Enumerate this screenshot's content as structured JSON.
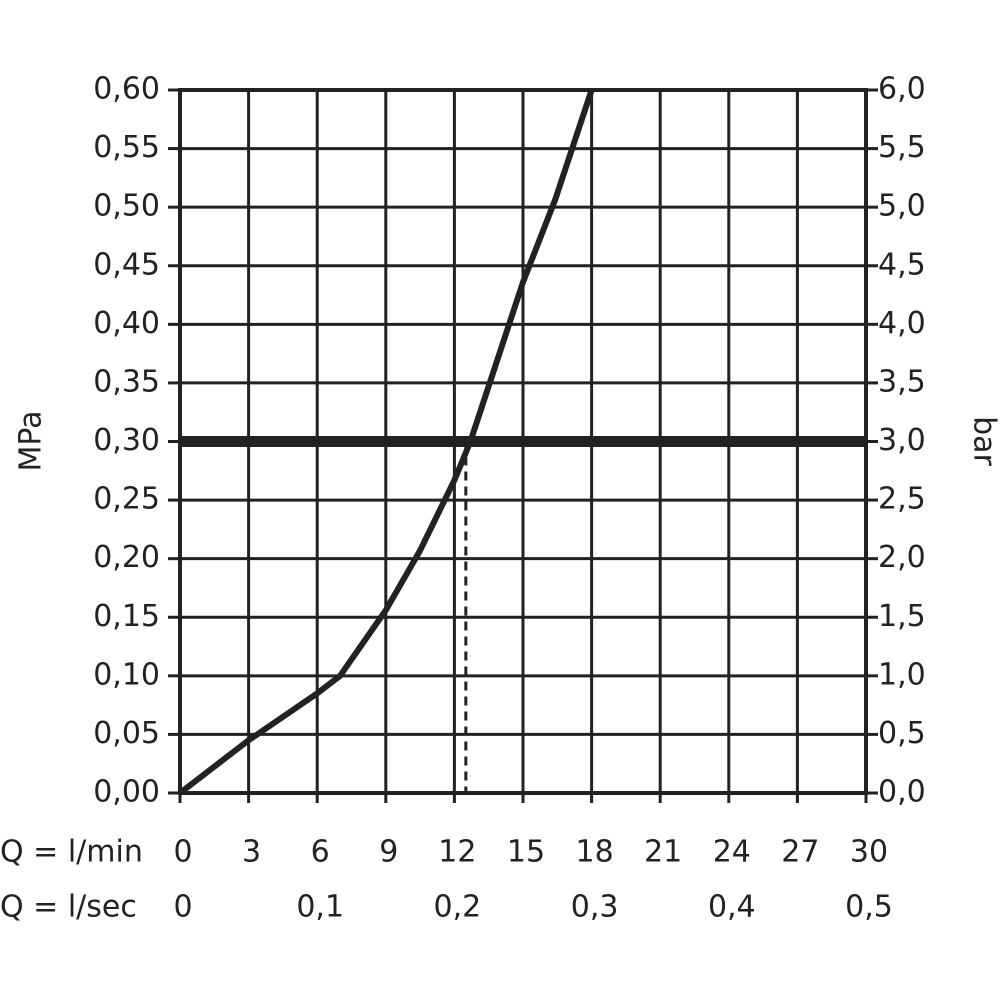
{
  "chart_data": {
    "type": "line",
    "x_label": "Q = l/min",
    "x2_label": "Q = l/sec",
    "y_label": "MPa",
    "y2_label": "bar",
    "xlim": [
      0,
      30
    ],
    "xticks": [
      0,
      3,
      6,
      9,
      12,
      15,
      18,
      21,
      24,
      27,
      30
    ],
    "x2lim": [
      0,
      0.5
    ],
    "x2ticks": [
      0,
      {
        "value": 0.1,
        "label": "0,1"
      },
      {
        "value": 0.2,
        "label": "0,2"
      },
      {
        "value": 0.3,
        "label": "0,3"
      },
      {
        "value": 0.4,
        "label": "0,4"
      },
      {
        "value": 0.5,
        "label": "0,5"
      }
    ],
    "ylim": [
      0,
      0.6
    ],
    "yticks": [
      {
        "value": 0,
        "label": "0,00"
      },
      {
        "value": 0.05,
        "label": "0,05"
      },
      {
        "value": 0.1,
        "label": "0,10"
      },
      {
        "value": 0.15,
        "label": "0,15"
      },
      {
        "value": 0.2,
        "label": "0,20"
      },
      {
        "value": 0.25,
        "label": "0,25"
      },
      {
        "value": 0.3,
        "label": "0,30"
      },
      {
        "value": 0.35,
        "label": "0,35"
      },
      {
        "value": 0.4,
        "label": "0,40"
      },
      {
        "value": 0.45,
        "label": "0,45"
      },
      {
        "value": 0.5,
        "label": "0,50"
      },
      {
        "value": 0.55,
        "label": "0,55"
      },
      {
        "value": 0.6,
        "label": "0,60"
      }
    ],
    "y2lim": [
      0,
      6
    ],
    "y2ticks": [
      {
        "value": 0,
        "label": "0,0"
      },
      {
        "value": 0.5,
        "label": "0,5"
      },
      {
        "value": 1,
        "label": "1,0"
      },
      {
        "value": 1.5,
        "label": "1,5"
      },
      {
        "value": 2,
        "label": "2,0"
      },
      {
        "value": 2.5,
        "label": "2,5"
      },
      {
        "value": 3,
        "label": "3,0"
      },
      {
        "value": 3.5,
        "label": "3,5"
      },
      {
        "value": 4,
        "label": "4,0"
      },
      {
        "value": 4.5,
        "label": "4,5"
      },
      {
        "value": 5,
        "label": "5,0"
      },
      {
        "value": 5.5,
        "label": "5,5"
      },
      {
        "value": 6,
        "label": "6,0"
      }
    ],
    "grid": true,
    "reference_y": 0.3,
    "reference_x": 12.5,
    "color": "#222222",
    "series": [
      {
        "color": "#222222",
        "x": [
          0,
          3,
          6,
          7,
          9,
          10.5,
          12,
          12.7,
          15,
          16.4,
          18
        ],
        "values": [
          0,
          0.045,
          0.085,
          0.1,
          0.156,
          0.207,
          0.267,
          0.3,
          0.436,
          0.506,
          0.6
        ]
      }
    ]
  }
}
